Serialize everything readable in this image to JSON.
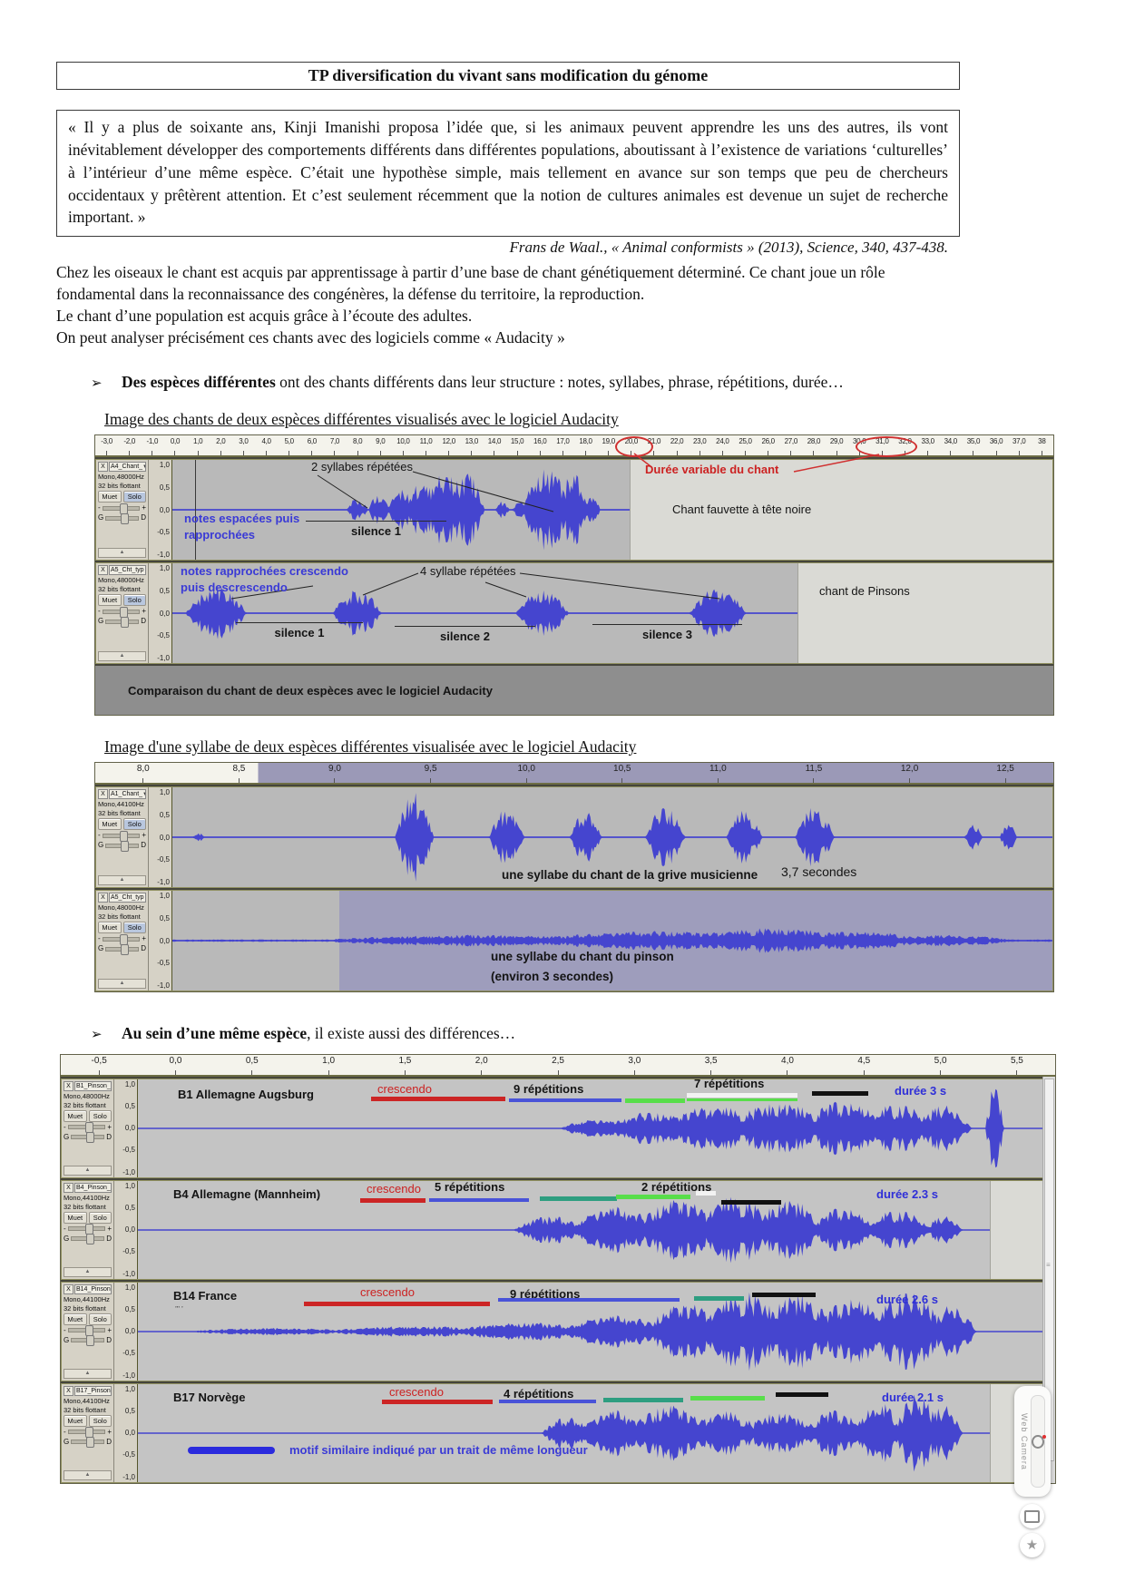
{
  "doc": {
    "title": "TP diversification du vivant sans modification du génome",
    "quote": "« Il y a plus de soixante ans, Kinji Imanishi proposa l’idée que, si les animaux peuvent apprendre les uns des autres, ils vont inévitablement développer des comportements différents dans différentes populations, aboutissant à l’existence de variations ‘culturelles’ à l’intérieur d’une même espèce. C’était une hypothèse simple, mais tellement en avance sur son temps que peu de chercheurs occidentaux y prêtèrent attention. Et c’est seulement récemment que la notion de cultures animales est devenue un sujet de recherche important. »",
    "attribution": "Frans de Waal., « Animal conformists » (2013), Science, 340, 437-438.",
    "para1": "Chez les oiseaux le chant est acquis par apprentissage à partir d’une base de chant génétiquement déterminé. Ce chant joue un rôle fondamental dans la reconnaissance des congénères, la défense du territoire, la reproduction.",
    "para2": "Le chant d’une population est acquis grâce à l’écoute des adultes.",
    "para3": "On peut analyser précisément ces chants avec des logiciels comme « Audacity »",
    "bullet_glyph": "➢",
    "bullet1_bold": "Des espèces différentes",
    "bullet1_rest": " ont des chants différents dans leur structure : notes, syllabes, phrase, répétitions, durée…",
    "heading1": "Image des chants de deux espèces différentes visualisés avec le logiciel Audacity",
    "heading2": "Image d'une syllabe de deux espèces différentes visualisée avec le logiciel Audacity",
    "bullet2_bold": "Au sein d’une même espèce",
    "bullet2_rest": ", il existe aussi des différences…"
  },
  "colors": {
    "waveform": "#4545cf",
    "annotation_blue": "#3a3ad6",
    "annotation_red": "#cc2222",
    "duree_blue": "#2f2fd8"
  },
  "common": {
    "close": "X",
    "dropdown": "▼",
    "muet": "Muet",
    "solo": "Solo",
    "bits": "32 bits flottant",
    "scale": [
      "1,0",
      "0,5",
      "0,0",
      "-0,5",
      "-1,0"
    ],
    "gain_minus": "-",
    "gain_plus": "+",
    "pan_left": "G",
    "pan_right": "D",
    "collapse": "▲"
  },
  "image1": {
    "ruler": [
      "-3,0",
      "-2,0",
      "-1,0",
      "0,0",
      "1,0",
      "2,0",
      "3,0",
      "4,0",
      "5,0",
      "6,0",
      "7,0",
      "8,0",
      "9,0",
      "10,0",
      "11,0",
      "12,0",
      "13,0",
      "14,0",
      "15,0",
      "16,0",
      "17,0",
      "18,0",
      "19,0",
      "20,0",
      "21,0",
      "22,0",
      "23,0",
      "24,0",
      "25,0",
      "26,0",
      "27,0",
      "28,0",
      "29,0",
      "30,0",
      "31,0",
      "32,0",
      "33,0",
      "34,0",
      "35,0",
      "36,0",
      "37,0",
      "38"
    ],
    "tracks": [
      {
        "name": "A4_Chant_",
        "rate": "Mono,48000Hz",
        "solo_active": true,
        "cursor": 0.026,
        "light_from": 0.52,
        "wave": [
          [
            0.21,
            0.012,
            0.25
          ],
          [
            0.235,
            0.012,
            0.35
          ],
          [
            0.26,
            0.015,
            0.45
          ],
          [
            0.285,
            0.02,
            0.62
          ],
          [
            0.31,
            0.025,
            0.85
          ],
          [
            0.335,
            0.02,
            0.75
          ],
          [
            0.375,
            0.008,
            0.18
          ],
          [
            0.395,
            0.008,
            0.22
          ],
          [
            0.425,
            0.028,
            0.9
          ],
          [
            0.455,
            0.018,
            0.78
          ],
          [
            0.478,
            0.008,
            0.35
          ]
        ]
      },
      {
        "name": "A5_Cht_typ",
        "rate": "Mono,48000Hz",
        "solo_active": true,
        "light_from": 0.71,
        "wave": [
          [
            0.05,
            0.035,
            0.55
          ],
          [
            0.21,
            0.028,
            0.5
          ],
          [
            0.42,
            0.03,
            0.5
          ],
          [
            0.62,
            0.032,
            0.55
          ]
        ]
      }
    ],
    "ann": {
      "duree_variable": "Durée variable du chant",
      "syllabes2": "2 syllabes répétées",
      "notes_espacees1": "notes espacées puis",
      "notes_espacees2": "rapprochées",
      "silence1a": "silence 1",
      "fauvette": "Chant fauvette à tête noire",
      "notes_rapprochees1": "notes rapprochées crescendo",
      "notes_rapprochees2": "puis descrescendo",
      "syllabes4": "4 syllabe répétées",
      "silence1b": "silence 1",
      "silence2": "silence 2",
      "silence3": "silence 3",
      "pinsons": "chant de Pinsons",
      "caption": "Comparaison du chant de deux espèces avec le logiciel Audacity"
    }
  },
  "image2": {
    "ruler": [
      "8,0",
      "8,5",
      "9,0",
      "9,5",
      "10,0",
      "10,5",
      "11,0",
      "11,5",
      "12,0",
      "12,5"
    ],
    "tracks": [
      {
        "name": "A1_Chant_",
        "rate": "Mono,44100Hz",
        "solo_active": true,
        "wave": [
          [
            0.03,
            0.006,
            0.1
          ],
          [
            0.275,
            0.022,
            0.95
          ],
          [
            0.38,
            0.02,
            0.6
          ],
          [
            0.47,
            0.018,
            0.55
          ],
          [
            0.56,
            0.022,
            0.65
          ],
          [
            0.65,
            0.02,
            0.6
          ],
          [
            0.73,
            0.022,
            0.65
          ],
          [
            0.91,
            0.01,
            0.3
          ],
          [
            0.95,
            0.01,
            0.28
          ]
        ]
      },
      {
        "name": "A5_Cht_typ",
        "rate": "Mono,48000Hz",
        "solo_active": true,
        "sel_from": 0.19,
        "base": 0.025,
        "wave": [
          [
            0.35,
            0.2,
            0.12
          ],
          [
            0.55,
            0.15,
            0.2
          ],
          [
            0.68,
            0.12,
            0.26
          ],
          [
            0.78,
            0.08,
            0.2
          ],
          [
            0.88,
            0.08,
            0.12
          ]
        ]
      }
    ],
    "ann": {
      "grive": "une syllabe du chant de la grive musicienne",
      "grive_duree": "3,7 secondes",
      "pinson1": "une syllabe du chant du pinson",
      "pinson2": "(environ 3 secondes)"
    }
  },
  "image3": {
    "ruler": [
      "-0,5",
      "0,0",
      "0,5",
      "1,0",
      "1,5",
      "2,0",
      "2,5",
      "3,0",
      "3,5",
      "4,0",
      "4,5",
      "5,0",
      "5,5"
    ],
    "tracks": [
      {
        "name": "B1_Pinson_",
        "rate": "Mono,48000Hz",
        "wave": [
          [
            0.5,
            0.04,
            0.2
          ],
          [
            0.56,
            0.05,
            0.35
          ],
          [
            0.63,
            0.06,
            0.5
          ],
          [
            0.7,
            0.06,
            0.55
          ],
          [
            0.77,
            0.05,
            0.6
          ],
          [
            0.83,
            0.04,
            0.55
          ],
          [
            0.88,
            0.03,
            0.5
          ],
          [
            0.935,
            0.01,
            0.95
          ]
        ]
      },
      {
        "name": "B4_Pinson_",
        "rate": "Mono,44100Hz",
        "light_from": 0.93,
        "wave": [
          [
            0.45,
            0.04,
            0.3
          ],
          [
            0.52,
            0.05,
            0.5
          ],
          [
            0.59,
            0.05,
            0.65
          ],
          [
            0.65,
            0.045,
            0.75
          ],
          [
            0.71,
            0.04,
            0.65
          ],
          [
            0.77,
            0.035,
            0.5
          ],
          [
            0.83,
            0.035,
            0.45
          ],
          [
            0.88,
            0.02,
            0.3
          ]
        ]
      },
      {
        "name": "B14_Pinson",
        "rate": "Mono,44100Hz",
        "wave": [
          [
            0.15,
            0.1,
            0.08
          ],
          [
            0.3,
            0.1,
            0.12
          ],
          [
            0.42,
            0.08,
            0.2
          ],
          [
            0.52,
            0.06,
            0.35
          ],
          [
            0.6,
            0.05,
            0.6
          ],
          [
            0.66,
            0.05,
            0.85
          ],
          [
            0.72,
            0.045,
            0.8
          ],
          [
            0.78,
            0.04,
            0.75
          ],
          [
            0.84,
            0.04,
            0.9
          ],
          [
            0.89,
            0.025,
            0.6
          ]
        ]
      },
      {
        "name": "B17_Pinson",
        "rate": "Mono,44100Hz",
        "light_from": 0.93,
        "wave": [
          [
            0.47,
            0.03,
            0.35
          ],
          [
            0.52,
            0.04,
            0.5
          ],
          [
            0.58,
            0.045,
            0.6
          ],
          [
            0.64,
            0.04,
            0.5
          ],
          [
            0.7,
            0.04,
            0.45
          ],
          [
            0.76,
            0.035,
            0.5
          ],
          [
            0.81,
            0.03,
            0.65
          ],
          [
            0.85,
            0.025,
            0.9
          ],
          [
            0.88,
            0.02,
            0.6
          ]
        ]
      }
    ],
    "ann": {
      "b1_label": "B1 Allemagne Augsburg",
      "b1_crescendo": "crescendo",
      "b1_rep": "9 répétitions",
      "b1_rep2": "7 répétitions",
      "b1_duree": "durée 3 s",
      "b4_label": "B4 Allemagne (Mannheim)",
      "b4_crescendo": "crescendo",
      "b4_rep": "5 répétitions",
      "b4_rep2": "2 répétitions",
      "b4_duree": "durée 2.3 s",
      "b14_label": "B14 France",
      "b14_ticks": "’’’ ’",
      "b14_crescendo": "crescendo",
      "b14_rep": "9 répétitions",
      "b14_duree": "durée 2.6 s",
      "b17_label": "B17 Norvège",
      "b17_crescendo": "crescendo",
      "b17_rep": "4 répétitions",
      "b17_duree": "durée 2.1 s",
      "motif": "motif similaire indiqué par un trait de même longueur"
    }
  },
  "webcam": {
    "label": "Web Camera"
  }
}
